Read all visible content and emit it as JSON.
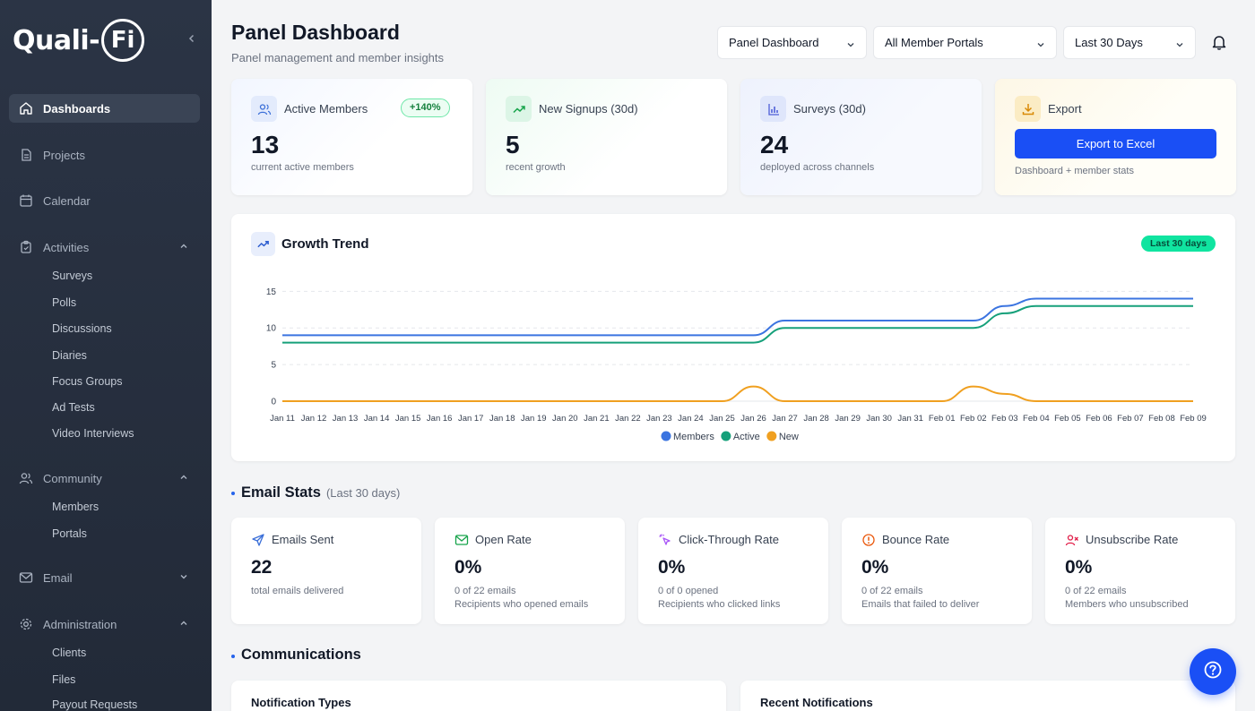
{
  "sidebar": {
    "logo_text": "Quali-",
    "logo_circle": "Fi",
    "items": [
      {
        "label": "Dashboards"
      },
      {
        "label": "Projects"
      },
      {
        "label": "Calendar"
      },
      {
        "label": "Activities"
      },
      {
        "label": "Community"
      },
      {
        "label": "Email"
      },
      {
        "label": "Administration"
      }
    ],
    "activities_sub": [
      "Surveys",
      "Polls",
      "Discussions",
      "Diaries",
      "Focus Groups",
      "Ad Tests",
      "Video Interviews"
    ],
    "community_sub": [
      "Members",
      "Portals"
    ],
    "administration_sub": [
      "Clients",
      "Files",
      "Payout Requests"
    ]
  },
  "header": {
    "title": "Panel Dashboard",
    "subtitle": "Panel management and member insights",
    "select_dashboard": "Panel Dashboard",
    "select_portals": "All Member Portals",
    "select_range": "Last 30 Days"
  },
  "stats": {
    "active": {
      "label": "Active Members",
      "badge": "+140%",
      "value": "13",
      "desc": "current active members"
    },
    "signups": {
      "label": "New Signups (30d)",
      "value": "5",
      "desc": "recent growth"
    },
    "surveys": {
      "label": "Surveys (30d)",
      "value": "24",
      "desc": "deployed across channels"
    },
    "export": {
      "label": "Export",
      "button": "Export to Excel",
      "desc": "Dashboard + member stats"
    }
  },
  "growth": {
    "title": "Growth Trend",
    "badge": "Last 30 days"
  },
  "chart_data": {
    "type": "line",
    "x": [
      "Jan 11",
      "Jan 12",
      "Jan 13",
      "Jan 14",
      "Jan 15",
      "Jan 16",
      "Jan 17",
      "Jan 18",
      "Jan 19",
      "Jan 20",
      "Jan 21",
      "Jan 22",
      "Jan 23",
      "Jan 24",
      "Jan 25",
      "Jan 26",
      "Jan 27",
      "Jan 28",
      "Jan 29",
      "Jan 30",
      "Jan 31",
      "Feb 01",
      "Feb 02",
      "Feb 03",
      "Feb 04",
      "Feb 05",
      "Feb 06",
      "Feb 07",
      "Feb 08",
      "Feb 09"
    ],
    "yticks": [
      0,
      5,
      10,
      15
    ],
    "ylim": [
      0,
      17
    ],
    "series": [
      {
        "name": "Members",
        "color": "#3b74e0",
        "values": [
          9,
          9,
          9,
          9,
          9,
          9,
          9,
          9,
          9,
          9,
          9,
          9,
          9,
          9,
          9,
          9,
          11,
          11,
          11,
          11,
          11,
          11,
          11,
          13,
          14,
          14,
          14,
          14,
          14,
          14
        ]
      },
      {
        "name": "Active",
        "color": "#16a07a",
        "values": [
          8,
          8,
          8,
          8,
          8,
          8,
          8,
          8,
          8,
          8,
          8,
          8,
          8,
          8,
          8,
          8,
          10,
          10,
          10,
          10,
          10,
          10,
          10,
          12,
          13,
          13,
          13,
          13,
          13,
          13
        ]
      },
      {
        "name": "New",
        "color": "#f0a020",
        "values": [
          0,
          0,
          0,
          0,
          0,
          0,
          0,
          0,
          0,
          0,
          0,
          0,
          0,
          0,
          0,
          2,
          0,
          0,
          0,
          0,
          0,
          0,
          2,
          1,
          0,
          0,
          0,
          0,
          0,
          0
        ]
      }
    ],
    "legend_position": "bottom",
    "grid": true
  },
  "email_stats": {
    "title": "Email Stats",
    "subtitle": "(Last 30 days)",
    "cards": [
      {
        "label": "Emails Sent",
        "value": "22",
        "desc1": "total emails delivered",
        "desc2": ""
      },
      {
        "label": "Open Rate",
        "value": "0%",
        "desc1": "0 of 22 emails",
        "desc2": "Recipients who opened emails"
      },
      {
        "label": "Click-Through Rate",
        "value": "0%",
        "desc1": "0 of 0 opened",
        "desc2": "Recipients who clicked links"
      },
      {
        "label": "Bounce Rate",
        "value": "0%",
        "desc1": "0 of 22 emails",
        "desc2": "Emails that failed to deliver"
      },
      {
        "label": "Unsubscribe Rate",
        "value": "0%",
        "desc1": "0 of 22 emails",
        "desc2": "Members who unsubscribed"
      }
    ]
  },
  "communications": {
    "title": "Communications",
    "left_card": "Notification Types",
    "right_card": "Recent Notifications"
  }
}
